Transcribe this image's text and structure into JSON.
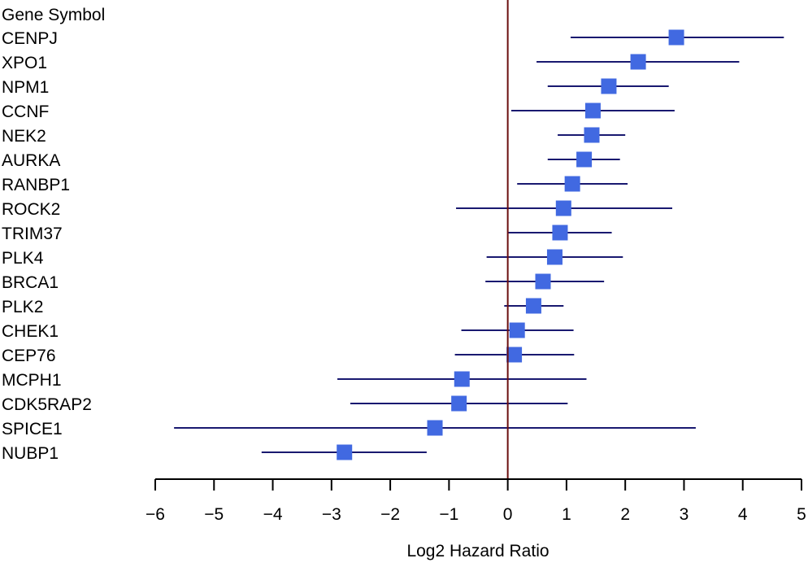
{
  "chart_data": {
    "type": "forest",
    "header": "Gene Symbol",
    "xlabel": "Log2 Hazard Ratio",
    "xlim": [
      -6,
      5
    ],
    "xticks": [
      -6,
      -5,
      -4,
      -3,
      -2,
      -1,
      0,
      1,
      2,
      3,
      4,
      5
    ],
    "xtick_labels": [
      "−6",
      "−5",
      "−4",
      "−3",
      "−2",
      "−1",
      "0",
      "1",
      "2",
      "3",
      "4",
      "5"
    ],
    "reference_line": 0,
    "rows": [
      {
        "gene": "CENPJ",
        "estimate": 2.87,
        "lower": 1.07,
        "upper": 4.7
      },
      {
        "gene": "XPO1",
        "estimate": 2.22,
        "lower": 0.49,
        "upper": 3.94
      },
      {
        "gene": "NPM1",
        "estimate": 1.72,
        "lower": 0.68,
        "upper": 2.74
      },
      {
        "gene": "CCNF",
        "estimate": 1.45,
        "lower": 0.06,
        "upper": 2.84
      },
      {
        "gene": "NEK2",
        "estimate": 1.43,
        "lower": 0.85,
        "upper": 2.0
      },
      {
        "gene": "AURKA",
        "estimate": 1.3,
        "lower": 0.68,
        "upper": 1.91
      },
      {
        "gene": "RANBP1",
        "estimate": 1.1,
        "lower": 0.16,
        "upper": 2.04
      },
      {
        "gene": "ROCK2",
        "estimate": 0.95,
        "lower": -0.88,
        "upper": 2.8
      },
      {
        "gene": "TRIM37",
        "estimate": 0.89,
        "lower": 0.01,
        "upper": 1.77
      },
      {
        "gene": "PLK4",
        "estimate": 0.8,
        "lower": -0.36,
        "upper": 1.96
      },
      {
        "gene": "BRCA1",
        "estimate": 0.6,
        "lower": -0.38,
        "upper": 1.64
      },
      {
        "gene": "PLK2",
        "estimate": 0.44,
        "lower": -0.06,
        "upper": 0.95
      },
      {
        "gene": "CHEK1",
        "estimate": 0.16,
        "lower": -0.79,
        "upper": 1.12
      },
      {
        "gene": "CEP76",
        "estimate": 0.11,
        "lower": -0.9,
        "upper": 1.13
      },
      {
        "gene": "MCPH1",
        "estimate": -0.78,
        "lower": -2.9,
        "upper": 1.34
      },
      {
        "gene": "CDK5RAP2",
        "estimate": -0.83,
        "lower": -2.68,
        "upper": 1.02
      },
      {
        "gene": "SPICE1",
        "estimate": -1.24,
        "lower": -5.68,
        "upper": 3.2
      },
      {
        "gene": "NUBP1",
        "estimate": -2.78,
        "lower": -4.19,
        "upper": -1.38
      }
    ],
    "colors": {
      "ci_line": "#191970",
      "point": "#4169e1",
      "reference_line": "#6b0f0f",
      "axis": "#000000"
    }
  }
}
